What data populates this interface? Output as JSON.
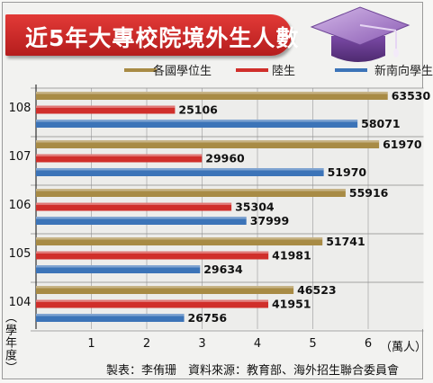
{
  "title": "近5年大專校院境外生人數",
  "source": "製表：李侑珊　資料來源：教育部、海外招生聯合委員會",
  "icons": {
    "cap": "graduation-cap-icon"
  },
  "colors": {
    "banner": "#c82624",
    "gold": "#a88b45",
    "red": "#d02f2b",
    "blue": "#3c74b8"
  },
  "chart_data": {
    "type": "bar",
    "orientation": "horizontal",
    "categories": [
      "108",
      "107",
      "106",
      "105",
      "104"
    ],
    "series": [
      {
        "name": "各國學位生",
        "color": "#a88b45",
        "values": [
          63530,
          61970,
          55916,
          51741,
          46523
        ]
      },
      {
        "name": "陸生",
        "color": "#d02f2b",
        "values": [
          25106,
          29960,
          35304,
          41981,
          41951
        ]
      },
      {
        "name": "新南向學生",
        "color": "#3c74b8",
        "values": [
          58071,
          51970,
          37999,
          29634,
          26756
        ]
      }
    ],
    "x_ticks": [
      "1",
      "2",
      "3",
      "4",
      "5",
      "6"
    ],
    "x_unit": "（萬人）",
    "ylabel": "（學年度）",
    "xlim": [
      0,
      70000
    ],
    "legend": "top",
    "grid": true
  }
}
